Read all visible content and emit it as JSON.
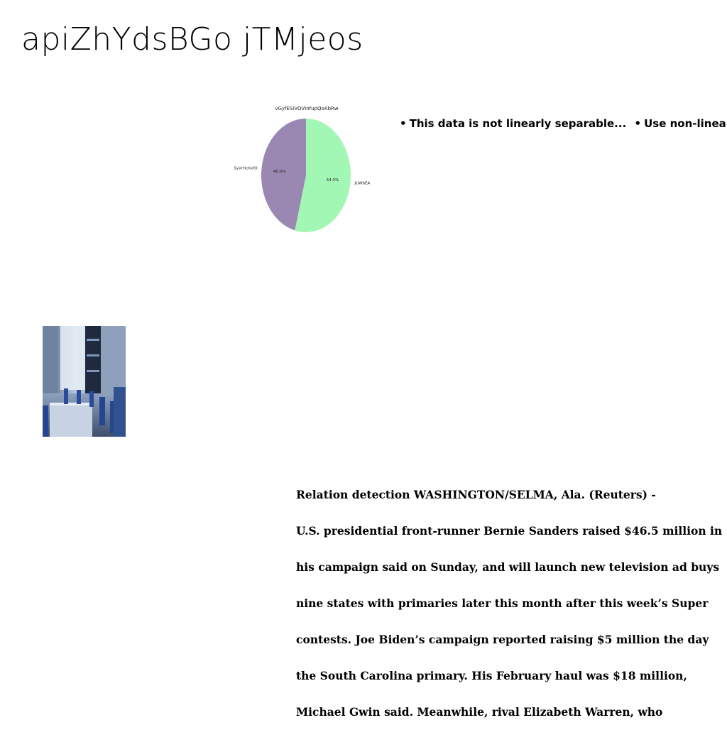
{
  "page": {
    "title": "apiZhYdsBGo jTMjeos"
  },
  "bullets": [
    "This data is not linearly separable...",
    "Use non-linear"
  ],
  "article": {
    "lines": [
      "Relation detection WASHINGTON/SELMA, Ala. (Reuters) -",
      "U.S. presidential front-runner Bernie Sanders raised $46.5 million in",
      "his campaign said on Sunday, and will launch new television ad buys",
      "nine states with primaries later this month after this week’s Super",
      "contests. Joe Biden’s campaign reported raising $5 million the day",
      "the South Carolina primary. His February haul was $18 million,",
      "Michael Gwin said. Meanwhile, rival Elizabeth Warren, who"
    ]
  },
  "photo": {
    "icon": "dining-room-photo"
  },
  "chart_data": {
    "type": "pie",
    "title": "vGyfESiVOVInfupQoAbRw",
    "labels": [
      "JUWbEA",
      "SyVrHcXxfO"
    ],
    "values": [
      54.0,
      46.0
    ],
    "value_labels": [
      "54.0%",
      "46.0%"
    ],
    "colors": [
      "#a3f7b5",
      "#9a88b3"
    ],
    "start_angle_deg": 90,
    "counterclockwise": false,
    "legend": "none"
  }
}
